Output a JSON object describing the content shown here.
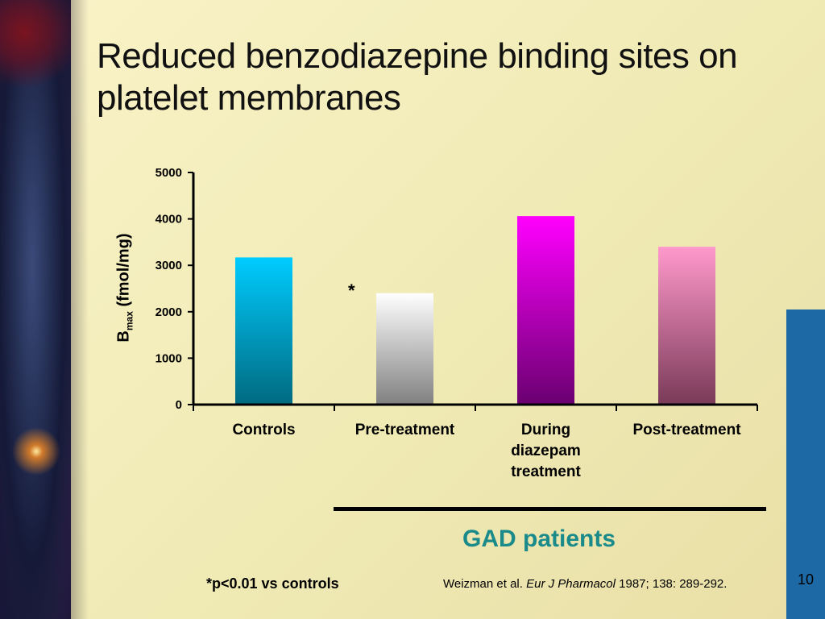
{
  "slide": {
    "title_line1": "Reduced benzodiazepine binding sites on",
    "title_line2": "platelet membranes",
    "group_label": "GAD patients",
    "footnote": "*p<0.01 vs controls",
    "citation_authors": "Weizman et al. ",
    "citation_journal": "Eur J Pharmacol",
    "citation_rest": " 1987; 138: 289-292.",
    "page_number": "10",
    "colors": {
      "background": "#f6eebf",
      "accent_bar": "#1d69a6",
      "group_label": "#1a8a8a"
    }
  },
  "chart_data": {
    "type": "bar",
    "title": "",
    "ylabel_main": "B",
    "ylabel_sub": "max",
    "ylabel_unit": " (fmol/mg)",
    "ylim": [
      0,
      5000
    ],
    "yticks": [
      "0",
      "1000",
      "2000",
      "3000",
      "4000",
      "5000"
    ],
    "categories": [
      [
        "Controls"
      ],
      [
        "Pre-treatment"
      ],
      [
        "During",
        "diazepam",
        "treatment"
      ],
      [
        "Post-treatment"
      ]
    ],
    "values": [
      3170,
      2400,
      4060,
      3400
    ],
    "annotations": [
      "",
      "*",
      "",
      ""
    ],
    "bar_colors": [
      [
        "#00ccff",
        "#006a80"
      ],
      [
        "#ffffff",
        "#808080"
      ],
      [
        "#ff00ff",
        "#6a0070"
      ],
      [
        "#ff99cc",
        "#7a3a58"
      ]
    ]
  }
}
